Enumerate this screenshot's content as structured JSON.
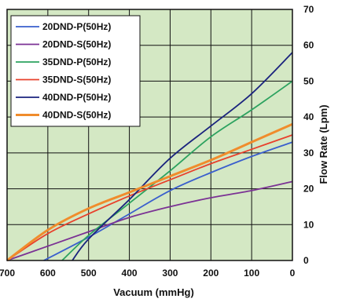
{
  "chart_data": {
    "type": "line",
    "xlabel": "Vacuum (mmHg)",
    "ylabel": "Flow Rate (Lpm)",
    "xlim": [
      700,
      0
    ],
    "ylim": [
      0,
      70
    ],
    "x_ticks": [
      "700",
      "600",
      "500",
      "400",
      "300",
      "200",
      "100",
      "0"
    ],
    "y_ticks": [
      "0",
      "10",
      "20",
      "30",
      "40",
      "50",
      "60",
      "70"
    ],
    "grid": true,
    "legend_position": "top-left",
    "plot_background": "#d4e8c4",
    "series": [
      {
        "name": "20DND-P(50Hz)",
        "color": "#3a5fcd",
        "x": [
          610,
          500,
          400,
          300,
          200,
          100,
          0
        ],
        "y": [
          0,
          6.5,
          13,
          19.5,
          24.5,
          29,
          33
        ]
      },
      {
        "name": "20DND-S(50Hz)",
        "color": "#7b3294",
        "x": [
          700,
          600,
          500,
          400,
          300,
          200,
          100,
          0
        ],
        "y": [
          0,
          4,
          8,
          12,
          15,
          17.5,
          19.5,
          22
        ]
      },
      {
        "name": "35DND-P(50Hz)",
        "color": "#2ca25f",
        "x": [
          565,
          500,
          400,
          300,
          200,
          100,
          0
        ],
        "y": [
          0,
          7,
          16,
          25,
          34.5,
          42,
          50
        ]
      },
      {
        "name": "35DND-S(50Hz)",
        "color": "#e8412c",
        "x": [
          700,
          600,
          500,
          400,
          300,
          200,
          100,
          0
        ],
        "y": [
          0,
          7.5,
          13,
          18,
          22.5,
          27,
          31,
          35
        ]
      },
      {
        "name": "40DND-P(50Hz)",
        "color": "#1a237e",
        "x": [
          540,
          500,
          400,
          300,
          200,
          100,
          0
        ],
        "y": [
          0,
          6,
          17,
          28.5,
          37.5,
          46.5,
          58
        ]
      },
      {
        "name": "40DND-S(50Hz)",
        "color": "#f08c2c",
        "x": [
          700,
          600,
          500,
          400,
          300,
          200,
          100,
          0
        ],
        "y": [
          0,
          8.5,
          14.5,
          19,
          23.5,
          28,
          33,
          38
        ]
      }
    ]
  }
}
